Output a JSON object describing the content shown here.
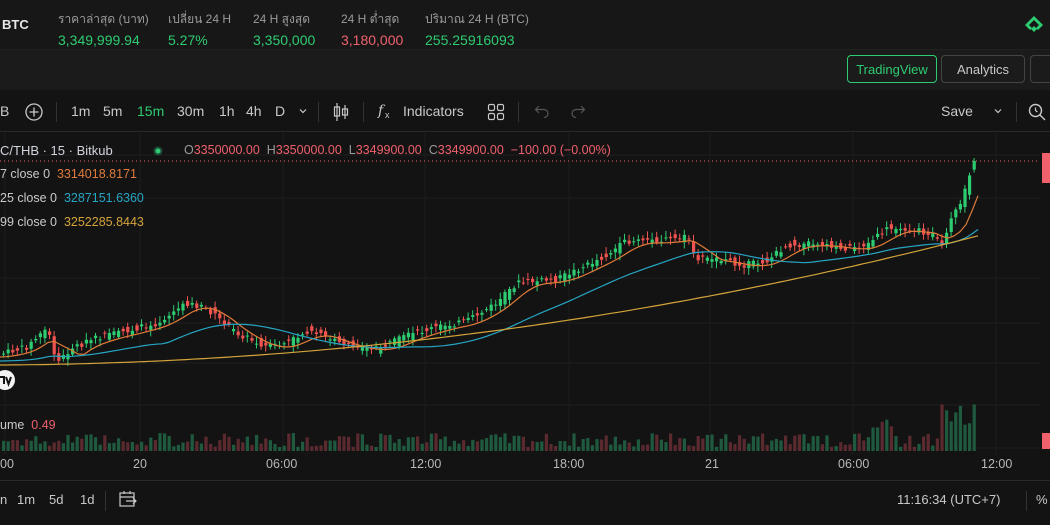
{
  "header": {
    "pair": "BTC",
    "stats": [
      {
        "label": "ราคาล่าสุด (บาท)",
        "value": "3,349,999.94",
        "tone": "green"
      },
      {
        "label": "เปลี่ยน 24 H",
        "value": "5.27%",
        "tone": "green"
      },
      {
        "label": "24 H สูงสุด",
        "value": "3,350,000",
        "tone": "green"
      },
      {
        "label": "24 H ต่ำสุด",
        "value": "3,180,000",
        "tone": "red"
      },
      {
        "label": "ปริมาณ 24 H (BTC)",
        "value": "255.25916093",
        "tone": "green"
      }
    ],
    "logo_icon": "bitkub-logo-icon"
  },
  "views": {
    "tradingview": "TradingView",
    "analytics": "Analytics"
  },
  "toolbar": {
    "symbol_fragment": "B",
    "add_icon": "plus-circle-icon",
    "intervals": [
      "1m",
      "5m",
      "15m",
      "30m",
      "1h",
      "4h",
      "D"
    ],
    "active_interval": "15m",
    "chart_type_icon": "candles-icon",
    "indicators": "Indicators",
    "layout_icon": "grid-icon",
    "undo_icon": "undo-icon",
    "redo_icon": "redo-icon",
    "save": "Save",
    "snapshot_icon": "search-icon"
  },
  "legend": {
    "title": "C/THB · 15 · Bitkub",
    "o_label": "O",
    "o": "3350000.00",
    "h_label": "H",
    "h": "3350000.00",
    "l_label": "L",
    "l": "3349900.00",
    "c_label": "C",
    "c": "3349900.00",
    "change": "−100.00 (−0.00%)",
    "ma7_label": "7 close 0",
    "ma7": "3314018.8171",
    "ma25_label": "25 close 0",
    "ma25": "3287151.6360",
    "ma99_label": "99 close 0",
    "ma99": "3252285.8443",
    "volume_label": "ume",
    "volume": "0.49"
  },
  "colors": {
    "up": "#26a69a",
    "up_bright": "#2ecc71",
    "down": "#ef5350",
    "ma7": "#e07b39",
    "ma25": "#26a6c4",
    "ma99": "#d4a43a"
  },
  "xaxis": [
    "00",
    "20",
    "06:00",
    "12:00",
    "18:00",
    "21",
    "06:00",
    "12:00"
  ],
  "bottom": {
    "ranges": [
      "n",
      "1m",
      "5d",
      "1d"
    ],
    "goto_icon": "goto-date-icon",
    "clock": "11:16:34 (UTC+7)",
    "percent": "%"
  }
}
